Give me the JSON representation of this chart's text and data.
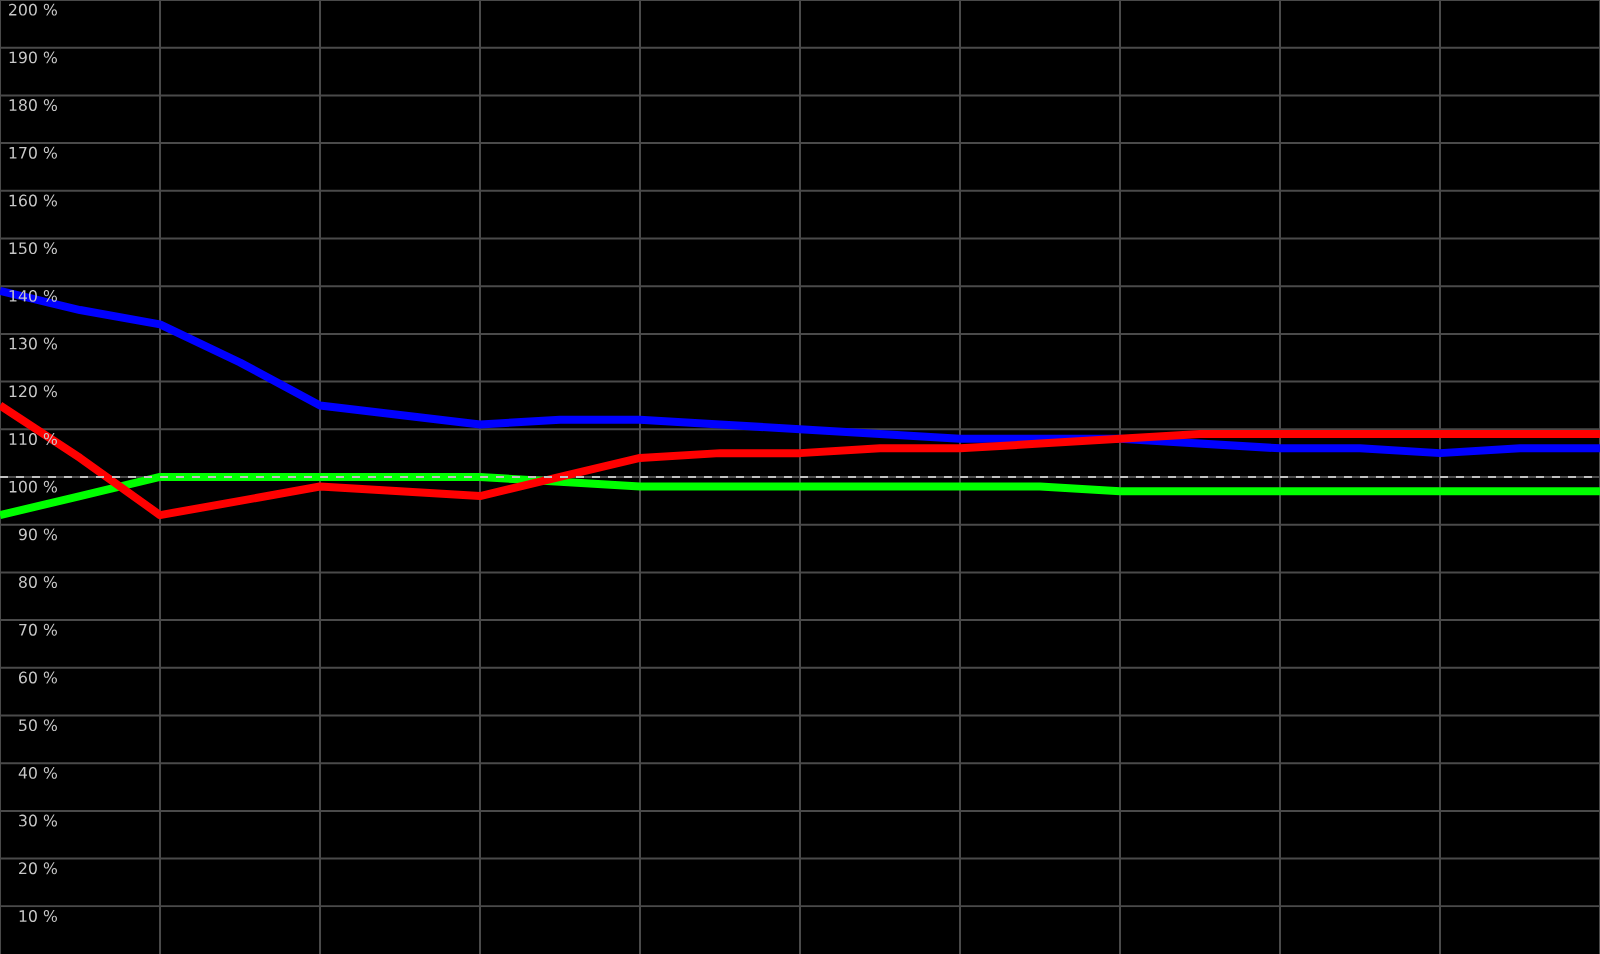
{
  "chart_data": {
    "type": "line",
    "categories": [
      null,
      null,
      null,
      null,
      null,
      null,
      null,
      null,
      null,
      null,
      null,
      null,
      null,
      null,
      null,
      null,
      null,
      null,
      null,
      null,
      null
    ],
    "series": [
      {
        "color": "#0000ff",
        "values": [
          139,
          135,
          132,
          124,
          115,
          113,
          111,
          112,
          112,
          111,
          110,
          109,
          108,
          108,
          108,
          107,
          106,
          106,
          105,
          106,
          106
        ]
      },
      {
        "color": "#00ff00",
        "values": [
          92,
          96,
          100,
          100,
          100,
          100,
          100,
          99,
          98,
          98,
          98,
          98,
          98,
          98,
          97,
          97,
          97,
          97,
          97,
          97,
          97
        ]
      },
      {
        "color": "#ff0000",
        "values": [
          115,
          104,
          92,
          95,
          98,
          97,
          96,
          100,
          104,
          105,
          105,
          106,
          106,
          107,
          108,
          109,
          109,
          109,
          109,
          109,
          109
        ]
      }
    ],
    "ylim": [
      0,
      200
    ],
    "yticks": [
      {
        "value": 10,
        "label": "10 %"
      },
      {
        "value": 20,
        "label": "20 %"
      },
      {
        "value": 30,
        "label": "30 %"
      },
      {
        "value": 40,
        "label": "40 %"
      },
      {
        "value": 50,
        "label": "50 %"
      },
      {
        "value": 60,
        "label": "60 %"
      },
      {
        "value": 70,
        "label": "70 %"
      },
      {
        "value": 80,
        "label": "80 %"
      },
      {
        "value": 90,
        "label": "90 %"
      },
      {
        "value": 100,
        "label": "100 %"
      },
      {
        "value": 110,
        "label": "110 %"
      },
      {
        "value": 120,
        "label": "120 %"
      },
      {
        "value": 130,
        "label": "130 %"
      },
      {
        "value": 140,
        "label": "140 %"
      },
      {
        "value": 150,
        "label": "150 %"
      },
      {
        "value": 160,
        "label": "160 %"
      },
      {
        "value": 170,
        "label": "170 %"
      },
      {
        "value": 180,
        "label": "180 %"
      },
      {
        "value": 190,
        "label": "190 %"
      },
      {
        "value": 200,
        "label": "200 %"
      }
    ],
    "grid": true,
    "tick_labels": "y",
    "marker": "none",
    "line_style": "solid",
    "ref_lines": [
      {
        "axis": "y",
        "value": 100,
        "line_style": "dashed",
        "color": "#c0c0c0"
      }
    ]
  }
}
